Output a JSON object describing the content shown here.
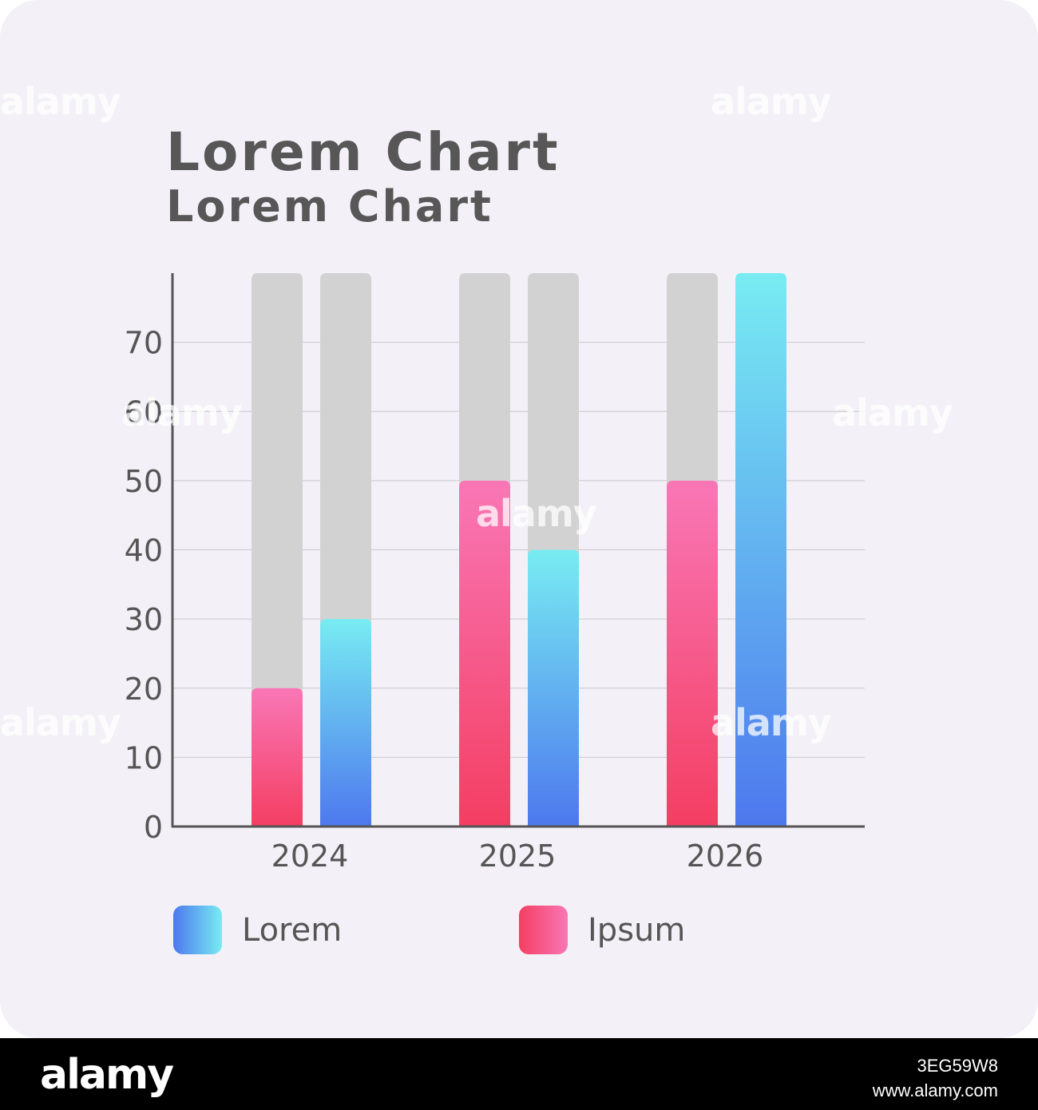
{
  "chart_data": {
    "type": "bar",
    "title": "Lorem Chart",
    "subtitle": "Lorem Chart",
    "categories": [
      "2024",
      "2025",
      "2026"
    ],
    "series": [
      {
        "name": "Ipsum",
        "values": [
          20,
          50,
          50
        ],
        "colors": [
          "#f43e62",
          "#f977b6"
        ]
      },
      {
        "name": "Lorem",
        "values": [
          30,
          40,
          80
        ],
        "colors": [
          "#4d78ee",
          "#78ecf2"
        ]
      }
    ],
    "background_bar_max": 80,
    "background_bar_color": "#d2d2d2",
    "yticks": [
      0,
      10,
      20,
      30,
      40,
      50,
      60,
      70
    ],
    "ylim": [
      0,
      80
    ],
    "grid": true,
    "legend": "bottom",
    "legend_order": [
      "Lorem",
      "Ipsum"
    ]
  },
  "watermark": {
    "text": "alamy",
    "image_id": "3EG59W8",
    "site": "www.alamy.com"
  }
}
